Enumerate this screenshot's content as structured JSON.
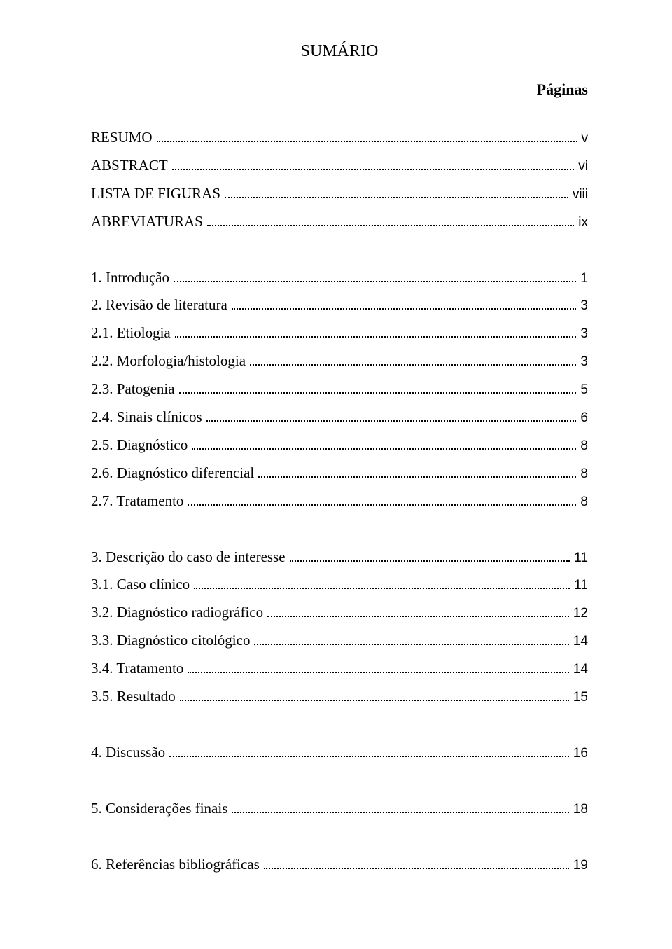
{
  "title": "SUMÁRIO",
  "pages_label": "Páginas",
  "text_color": "#000000",
  "background_color": "#ffffff",
  "groups": [
    {
      "items": [
        {
          "label": "RESUMO",
          "page": "v"
        },
        {
          "label": "ABSTRACT",
          "page": "vi"
        },
        {
          "label": "LISTA DE FIGURAS",
          "page": "viii"
        },
        {
          "label": "ABREVIATURAS",
          "page": "ix"
        }
      ]
    },
    {
      "items": [
        {
          "label": "1. Introdução",
          "page": "1"
        },
        {
          "label": "2. Revisão de literatura",
          "page": "3"
        },
        {
          "label": "2.1. Etiologia",
          "page": "3"
        },
        {
          "label": "2.2. Morfologia/histologia",
          "page": "3"
        },
        {
          "label": "2.3. Patogenia",
          "page": "5"
        },
        {
          "label": "2.4. Sinais clínicos",
          "page": "6"
        },
        {
          "label": "2.5. Diagnóstico",
          "page": "8"
        },
        {
          "label": "2.6. Diagnóstico diferencial",
          "page": "8"
        },
        {
          "label": "2.7. Tratamento",
          "page": "8"
        }
      ]
    },
    {
      "items": [
        {
          "label": "3. Descrição do caso de interesse",
          "page": "11"
        },
        {
          "label": "3.1. Caso clínico",
          "page": "11"
        },
        {
          "label": "3.2. Diagnóstico radiográfico",
          "page": "12"
        },
        {
          "label": "3.3. Diagnóstico citológico",
          "page": "14"
        },
        {
          "label": "3.4. Tratamento",
          "page": "14"
        },
        {
          "label": "3.5. Resultado",
          "page": "15"
        }
      ]
    },
    {
      "items": [
        {
          "label": "4. Discussão",
          "page": "16"
        }
      ]
    },
    {
      "items": [
        {
          "label": "5. Considerações finais",
          "page": "18"
        }
      ]
    },
    {
      "items": [
        {
          "label": "6. Referências bibliográficas",
          "page": "19"
        }
      ]
    }
  ]
}
